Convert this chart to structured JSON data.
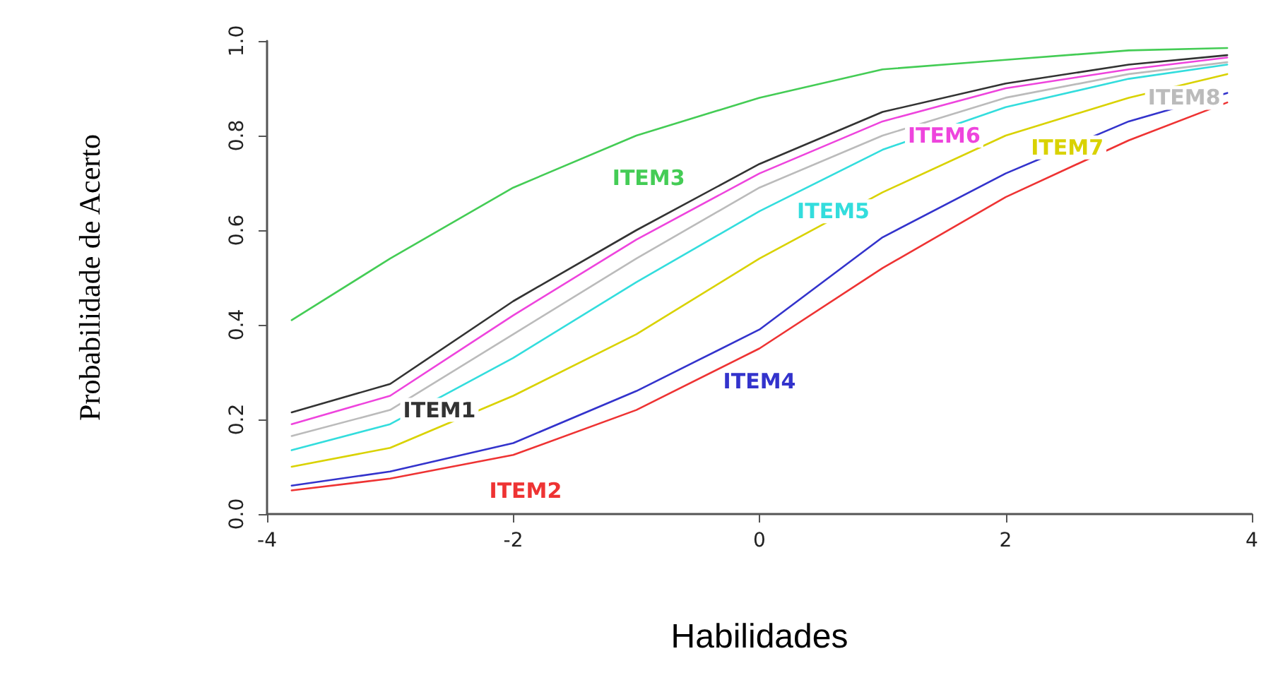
{
  "chart_data": {
    "type": "line",
    "xlabel": "Habilidades",
    "ylabel": "Probabilidade de Acerto",
    "x": [
      -3.8,
      -3,
      -2,
      -1,
      0,
      1,
      2,
      3,
      3.8
    ],
    "xlim": [
      -4,
      4
    ],
    "xticks": [
      -4,
      -2,
      0,
      2,
      4
    ],
    "ylim": [
      0,
      1
    ],
    "yticks": [
      {
        "value": 0,
        "label": "0.0"
      },
      0.2,
      0.4,
      0.6,
      0.8,
      {
        "value": 1,
        "label": "1.0"
      }
    ],
    "grid": false,
    "legend": false,
    "marker": "none",
    "line_style": "solid",
    "series": [
      {
        "name": "ITEM1",
        "color": "#333333",
        "values": [
          0.215,
          0.275,
          0.45,
          0.6,
          0.74,
          0.85,
          0.91,
          0.95,
          0.97
        ]
      },
      {
        "name": "ITEM2",
        "color": "#ee3333",
        "values": [
          0.05,
          0.075,
          0.125,
          0.22,
          0.35,
          0.52,
          0.67,
          0.79,
          0.87
        ]
      },
      {
        "name": "ITEM3",
        "color": "#44cc55",
        "values": [
          0.41,
          0.54,
          0.69,
          0.8,
          0.88,
          0.94,
          0.96,
          0.98,
          0.985
        ]
      },
      {
        "name": "ITEM4",
        "color": "#3333cc",
        "values": [
          0.06,
          0.09,
          0.15,
          0.26,
          0.39,
          0.585,
          0.72,
          0.83,
          0.89
        ]
      },
      {
        "name": "ITEM5",
        "color": "#33dddd",
        "values": [
          0.135,
          0.19,
          0.33,
          0.49,
          0.64,
          0.77,
          0.86,
          0.92,
          0.95
        ]
      },
      {
        "name": "ITEM6",
        "color": "#ee44dd",
        "values": [
          0.19,
          0.25,
          0.42,
          0.58,
          0.72,
          0.83,
          0.9,
          0.94,
          0.965
        ]
      },
      {
        "name": "ITEM7",
        "color": "#d9d200",
        "values": [
          0.1,
          0.14,
          0.25,
          0.38,
          0.54,
          0.68,
          0.8,
          0.88,
          0.93
        ]
      },
      {
        "name": "ITEM8",
        "color": "#bbbbbb",
        "values": [
          0.165,
          0.22,
          0.38,
          0.54,
          0.69,
          0.8,
          0.88,
          0.93,
          0.955
        ]
      }
    ]
  }
}
